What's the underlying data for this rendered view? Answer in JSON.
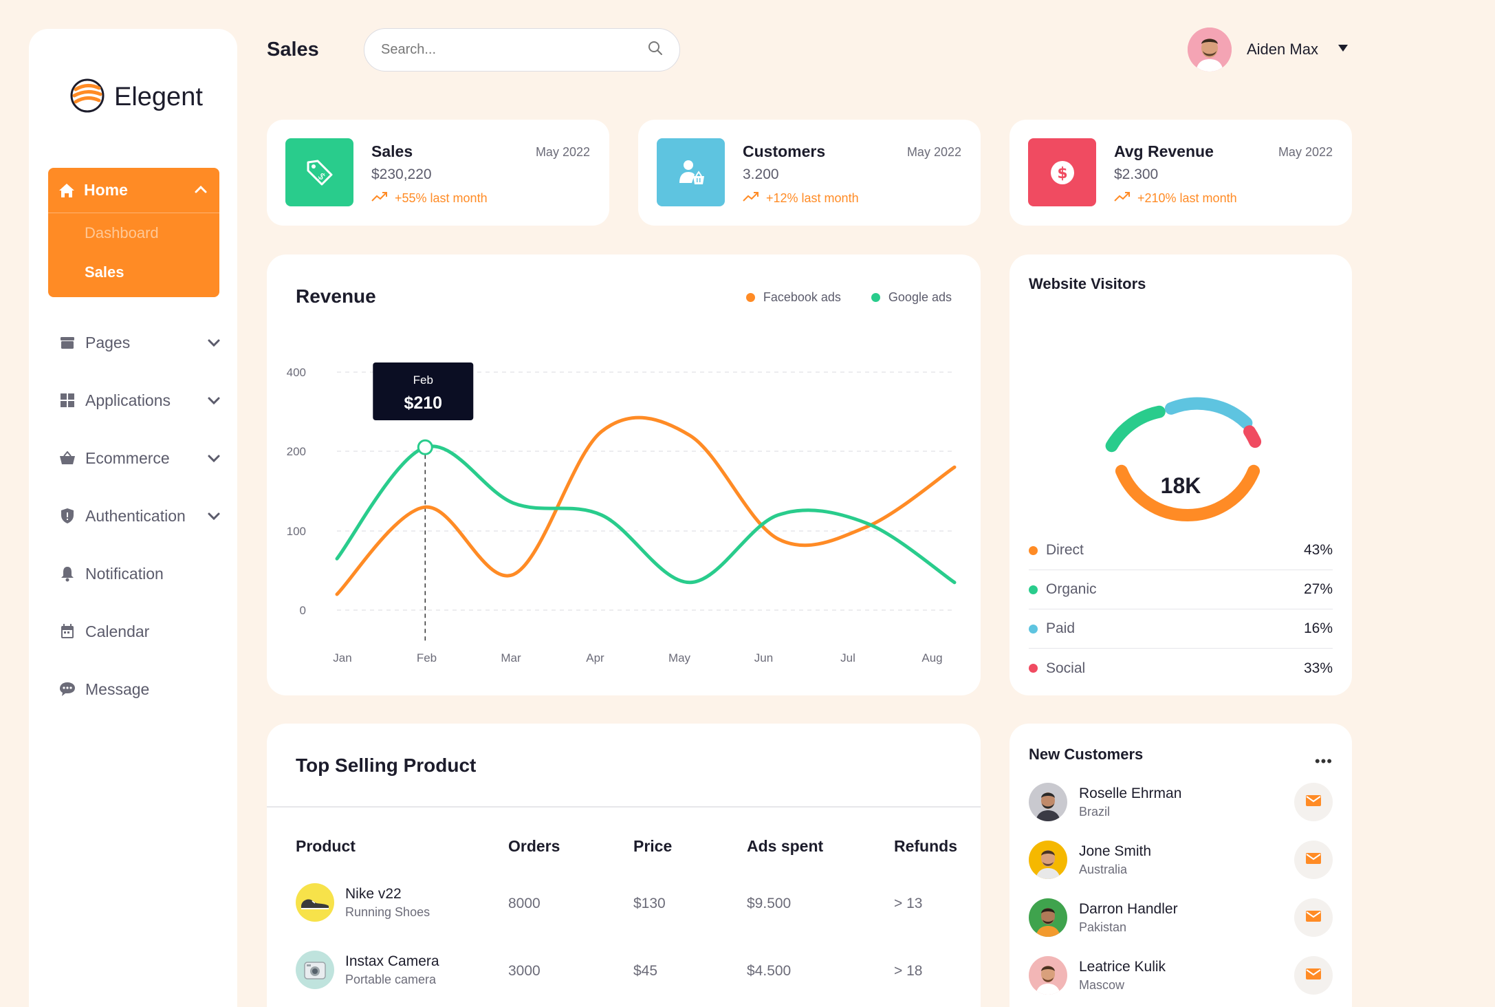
{
  "app": {
    "logo_text": "Elegent",
    "page_title": "Sales"
  },
  "search": {
    "placeholder": "Search..."
  },
  "user": {
    "name": "Aiden Max"
  },
  "sidebar": {
    "home": {
      "label": "Home",
      "children": [
        "Dashboard",
        "Sales"
      ]
    },
    "items": [
      {
        "label": "Pages",
        "icon": "folder-icon"
      },
      {
        "label": "Applications",
        "icon": "grid-icon"
      },
      {
        "label": "Ecommerce",
        "icon": "basket-icon"
      },
      {
        "label": "Authentication",
        "icon": "shield-icon"
      },
      {
        "label": "Notification",
        "icon": "bell-icon"
      },
      {
        "label": "Calendar",
        "icon": "calendar-icon"
      },
      {
        "label": "Message",
        "icon": "chat-icon"
      }
    ]
  },
  "stats": [
    {
      "title": "Sales",
      "date": "May 2022",
      "value": "$230,220",
      "trend": "+55% last month",
      "color": "#29cc8c",
      "icon": "price-tag-icon"
    },
    {
      "title": "Customers",
      "date": "May 2022",
      "value": "3.200",
      "trend": "+12% last month",
      "color": "#5ec4e0",
      "icon": "customer-icon"
    },
    {
      "title": "Avg Revenue",
      "date": "May 2022",
      "value": "$2.300",
      "trend": "+210% last month",
      "color": "#f04b61",
      "icon": "dollar-icon"
    }
  ],
  "revenue": {
    "title": "Revenue",
    "tooltip": {
      "label": "Feb",
      "value": "$210"
    }
  },
  "chart_data": {
    "type": "line",
    "title": "Revenue",
    "categories": [
      "Jan",
      "Feb",
      "Mar",
      "Apr",
      "May",
      "Jun",
      "Jul",
      "Aug"
    ],
    "yticks": [
      "400",
      "200",
      "100",
      "0"
    ],
    "series": [
      {
        "name": "Facebook ads",
        "color": "#ff8b25",
        "values": [
          20,
          130,
          45,
          250,
          240,
          90,
          105,
          180
        ]
      },
      {
        "name": "Google ads",
        "color": "#29cc8c",
        "values": [
          65,
          210,
          135,
          120,
          35,
          120,
          110,
          35
        ]
      }
    ],
    "legend": "top-right",
    "grid": true
  },
  "visitors": {
    "title": "Website Visitors",
    "total": "18K",
    "rows": [
      {
        "label": "Direct",
        "value": "43%",
        "color": "#ff8b25"
      },
      {
        "label": "Organic",
        "value": "27%",
        "color": "#29cc8c"
      },
      {
        "label": "Paid",
        "value": "16%",
        "color": "#5ec4e0"
      },
      {
        "label": "Social",
        "value": "33%",
        "color": "#f04b61"
      }
    ]
  },
  "top_selling": {
    "title": "Top Selling Product",
    "columns": [
      "Product",
      "Orders",
      "Price",
      "Ads spent",
      "Refunds"
    ],
    "rows": [
      {
        "name": "Nike v22",
        "sub": "Running Shoes",
        "orders": "8000",
        "price": "$130",
        "ads": "$9.500",
        "refunds": "> 13",
        "bg": "#f7e24a"
      },
      {
        "name": "Instax Camera",
        "sub": "Portable camera",
        "orders": "3000",
        "price": "$45",
        "ads": "$4.500",
        "refunds": "> 18",
        "bg": "#bfe3dd"
      }
    ]
  },
  "new_customers": {
    "title": "New Customers",
    "more": "•••",
    "rows": [
      {
        "name": "Roselle Ehrman",
        "country": "Brazil",
        "bg": "#c9c9cf"
      },
      {
        "name": "Jone Smith",
        "country": "Australia",
        "bg": "#f5b800"
      },
      {
        "name": "Darron Handler",
        "country": "Pakistan",
        "bg": "#3fa34d"
      },
      {
        "name": "Leatrice Kulik",
        "country": "Mascow",
        "bg": "#f2b6b6"
      }
    ]
  }
}
